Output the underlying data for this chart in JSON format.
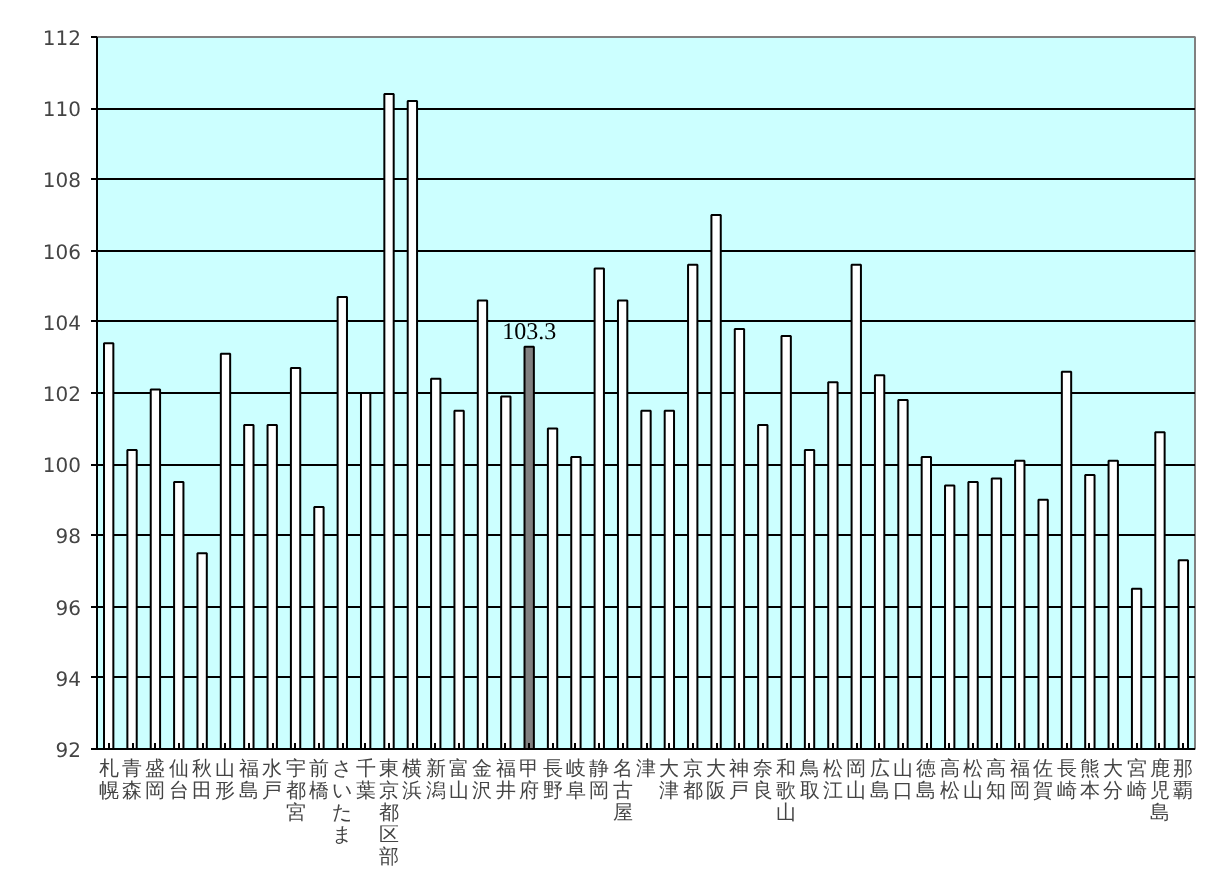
{
  "chart_data": {
    "type": "bar",
    "categories": [
      "札幌",
      "青森",
      "盛岡",
      "仙台",
      "秋田",
      "山形",
      "福島",
      "水戸",
      "宇都宮",
      "前橋",
      "さいたま",
      "千葉",
      "東京都区部",
      "横浜",
      "新潟",
      "富山",
      "金沢",
      "福井",
      "甲府",
      "長野",
      "岐阜",
      "静岡",
      "名古屋",
      "津",
      "大津",
      "京都",
      "大阪",
      "神戸",
      "奈良",
      "和歌山",
      "鳥取",
      "松江",
      "岡山",
      "広島",
      "山口",
      "徳島",
      "高松",
      "松山",
      "高知",
      "福岡",
      "佐賀",
      "長崎",
      "熊本",
      "大分",
      "宮崎",
      "鹿児島",
      "那覇"
    ],
    "values": [
      103.4,
      100.4,
      102.1,
      99.5,
      97.5,
      103.1,
      101.1,
      101.1,
      102.7,
      98.8,
      104.7,
      102.0,
      110.4,
      110.2,
      102.4,
      101.5,
      104.6,
      101.9,
      103.3,
      101.0,
      100.2,
      105.5,
      104.6,
      101.5,
      101.5,
      105.6,
      107.0,
      103.8,
      101.1,
      103.6,
      100.4,
      102.3,
      105.6,
      102.5,
      101.8,
      100.2,
      99.4,
      99.5,
      99.6,
      100.1,
      99.0,
      102.6,
      99.7,
      100.1,
      96.5,
      100.9,
      97.3
    ],
    "colors": [
      "#ffffff",
      "#ffffff",
      "#ffffff",
      "#ffffff",
      "#ffffff",
      "#ffffff",
      "#ffffff",
      "#ffffff",
      "#ffffff",
      "#ffffff",
      "#ffffff",
      "#ffffff",
      "#ffffff",
      "#ffffff",
      "#ffffff",
      "#ffffff",
      "#ffffff",
      "#ffffff",
      "#808080",
      "#ffffff",
      "#ffffff",
      "#ffffff",
      "#ffffff",
      "#ffffff",
      "#ffffff",
      "#ffffff",
      "#ffffff",
      "#ffffff",
      "#ffffff",
      "#ffffff",
      "#ffffff",
      "#ffffff",
      "#ffffff",
      "#ffffff",
      "#ffffff",
      "#ffffff",
      "#ffffff",
      "#ffffff",
      "#ffffff",
      "#ffffff",
      "#ffffff",
      "#ffffff",
      "#ffffff",
      "#ffffff",
      "#ffffff",
      "#ffffff",
      "#ffffff"
    ],
    "value_labels": [
      null,
      null,
      null,
      null,
      null,
      null,
      null,
      null,
      null,
      null,
      null,
      null,
      null,
      null,
      null,
      null,
      null,
      null,
      "103.3",
      null,
      null,
      null,
      null,
      null,
      null,
      null,
      null,
      null,
      null,
      null,
      null,
      null,
      null,
      null,
      null,
      null,
      null,
      null,
      null,
      null,
      null,
      null,
      null,
      null,
      null,
      null,
      null
    ],
    "ylim": [
      92,
      112
    ],
    "yticks": [
      92,
      94,
      96,
      98,
      100,
      102,
      104,
      106,
      108,
      110,
      112
    ],
    "grid": "y"
  }
}
